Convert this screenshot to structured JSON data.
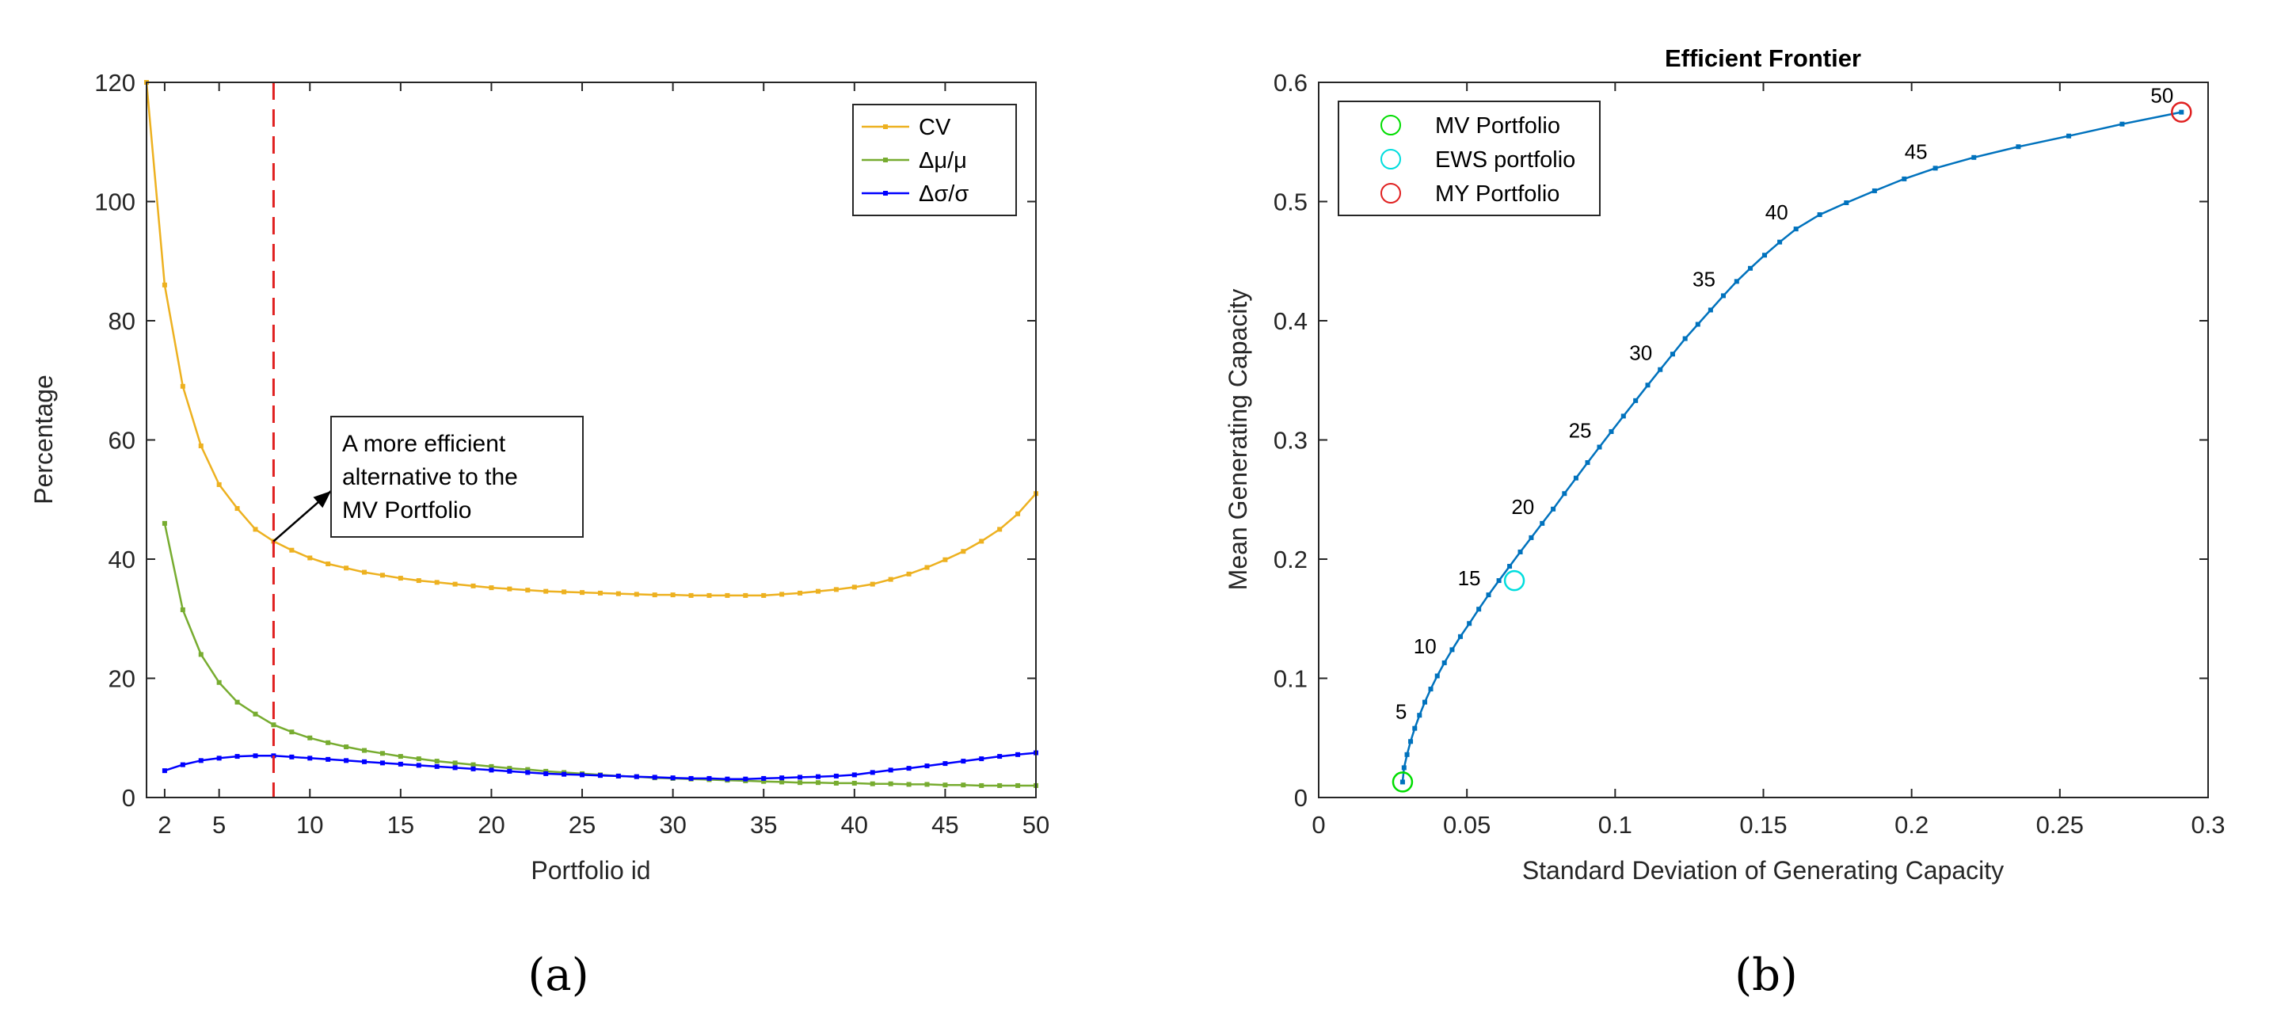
{
  "panel_labels": [
    "(a)",
    "(b)"
  ],
  "chart_data": [
    {
      "type": "line",
      "title": "",
      "xlabel": "Portfolio id",
      "ylabel": "Percentage",
      "xlim": [
        1,
        50
      ],
      "ylim": [
        0,
        120
      ],
      "xticks": [
        2,
        5,
        10,
        15,
        20,
        25,
        30,
        35,
        40,
        45,
        50
      ],
      "yticks": [
        0,
        20,
        40,
        60,
        80,
        100,
        120
      ],
      "legend_position": "top-right",
      "vertical_reference_x": 8,
      "annotation": {
        "lines": [
          "A more efficient",
          "alternative to the",
          "MV Portfolio"
        ],
        "points_to": [
          8,
          43
        ]
      },
      "series": [
        {
          "name": "CV",
          "color": "#EDB120",
          "x": [
            1,
            2,
            3,
            4,
            5,
            6,
            7,
            8,
            9,
            10,
            11,
            12,
            13,
            14,
            15,
            16,
            17,
            18,
            19,
            20,
            21,
            22,
            23,
            24,
            25,
            26,
            27,
            28,
            29,
            30,
            31,
            32,
            33,
            34,
            35,
            36,
            37,
            38,
            39,
            40,
            41,
            42,
            43,
            44,
            45,
            46,
            47,
            48,
            49,
            50
          ],
          "values": [
            120,
            86,
            69,
            59,
            52.5,
            48.5,
            45,
            43,
            41.5,
            40.2,
            39.2,
            38.5,
            37.8,
            37.3,
            36.8,
            36.4,
            36.1,
            35.8,
            35.5,
            35.2,
            35.0,
            34.8,
            34.6,
            34.5,
            34.4,
            34.3,
            34.2,
            34.1,
            34.0,
            34.0,
            33.9,
            33.9,
            33.9,
            33.9,
            33.9,
            34.1,
            34.3,
            34.6,
            34.9,
            35.3,
            35.8,
            36.6,
            37.5,
            38.6,
            39.9,
            41.3,
            43.0,
            45.0,
            47.6,
            51.0
          ]
        },
        {
          "name": "Δμ/μ",
          "color": "#77AC30",
          "x": [
            2,
            3,
            4,
            5,
            6,
            7,
            8,
            9,
            10,
            11,
            12,
            13,
            14,
            15,
            16,
            17,
            18,
            19,
            20,
            21,
            22,
            23,
            24,
            25,
            26,
            27,
            28,
            29,
            30,
            31,
            32,
            33,
            34,
            35,
            36,
            37,
            38,
            39,
            40,
            41,
            42,
            43,
            44,
            45,
            46,
            47,
            48,
            49,
            50
          ],
          "values": [
            46,
            31.5,
            24,
            19.3,
            16,
            14,
            12.2,
            11,
            10,
            9.2,
            8.5,
            7.9,
            7.4,
            6.9,
            6.5,
            6.1,
            5.8,
            5.5,
            5.2,
            4.9,
            4.7,
            4.4,
            4.2,
            4.0,
            3.8,
            3.6,
            3.5,
            3.3,
            3.2,
            3.1,
            3.0,
            2.9,
            2.8,
            2.7,
            2.6,
            2.5,
            2.5,
            2.4,
            2.4,
            2.3,
            2.3,
            2.2,
            2.2,
            2.1,
            2.1,
            2.0,
            2.0,
            2.0,
            2.0
          ]
        },
        {
          "name": "Δσ/σ",
          "color": "#0000FF",
          "x": [
            2,
            3,
            4,
            5,
            6,
            7,
            8,
            9,
            10,
            11,
            12,
            13,
            14,
            15,
            16,
            17,
            18,
            19,
            20,
            21,
            22,
            23,
            24,
            25,
            26,
            27,
            28,
            29,
            30,
            31,
            32,
            33,
            34,
            35,
            36,
            37,
            38,
            39,
            40,
            41,
            42,
            43,
            44,
            45,
            46,
            47,
            48,
            49,
            50
          ],
          "values": [
            4.5,
            5.5,
            6.2,
            6.6,
            6.9,
            7.0,
            7.0,
            6.8,
            6.6,
            6.4,
            6.2,
            6.0,
            5.8,
            5.6,
            5.4,
            5.2,
            5.0,
            4.8,
            4.6,
            4.4,
            4.2,
            4.0,
            3.9,
            3.8,
            3.7,
            3.6,
            3.5,
            3.4,
            3.3,
            3.2,
            3.2,
            3.1,
            3.1,
            3.2,
            3.3,
            3.4,
            3.5,
            3.6,
            3.8,
            4.2,
            4.6,
            4.9,
            5.3,
            5.7,
            6.1,
            6.5,
            6.9,
            7.2,
            7.5
          ]
        }
      ]
    },
    {
      "type": "line",
      "title": "Efficient Frontier",
      "xlabel": "Standard Deviation of Generating Capacity",
      "ylabel": "Mean Generating Capacity",
      "xlim": [
        0,
        0.3
      ],
      "ylim": [
        0,
        0.6
      ],
      "xticks": [
        0,
        0.05,
        0.1,
        0.15,
        0.2,
        0.25,
        0.3
      ],
      "xtick_labels": [
        "0",
        "0.05",
        "0.1",
        "0.15",
        "0.2",
        "0.25",
        "0.3"
      ],
      "yticks": [
        0,
        0.1,
        0.2,
        0.3,
        0.4,
        0.5,
        0.6
      ],
      "ytick_labels": [
        "0",
        "0.1",
        "0.2",
        "0.3",
        "0.4",
        "0.5",
        "0.6"
      ],
      "legend_position": "top-left",
      "series": [
        {
          "name": "Efficient frontier",
          "color": "#0072BD",
          "x": [
            0.0283,
            0.0288,
            0.0298,
            0.031,
            0.0324,
            0.034,
            0.0358,
            0.0378,
            0.04,
            0.0424,
            0.045,
            0.0478,
            0.0508,
            0.054,
            0.0573,
            0.0608,
            0.0644,
            0.068,
            0.0717,
            0.0754,
            0.0791,
            0.0829,
            0.0868,
            0.0907,
            0.0947,
            0.0987,
            0.1028,
            0.1069,
            0.111,
            0.1152,
            0.1194,
            0.1236,
            0.1279,
            0.1322,
            0.1365,
            0.141,
            0.1456,
            0.1504,
            0.1555,
            0.161,
            0.169,
            0.178,
            0.1875,
            0.1975,
            0.208,
            0.221,
            0.236,
            0.253,
            0.271,
            0.291
          ],
          "values": [
            0.013,
            0.025,
            0.036,
            0.047,
            0.058,
            0.069,
            0.08,
            0.091,
            0.102,
            0.113,
            0.124,
            0.135,
            0.146,
            0.158,
            0.17,
            0.182,
            0.194,
            0.206,
            0.218,
            0.23,
            0.242,
            0.255,
            0.268,
            0.281,
            0.294,
            0.307,
            0.32,
            0.333,
            0.346,
            0.359,
            0.372,
            0.385,
            0.397,
            0.409,
            0.421,
            0.433,
            0.444,
            0.455,
            0.466,
            0.477,
            0.489,
            0.499,
            0.509,
            0.519,
            0.528,
            0.537,
            0.546,
            0.555,
            0.565,
            0.575
          ]
        }
      ],
      "point_labels": [
        {
          "text": "5",
          "index": 4
        },
        {
          "text": "10",
          "index": 9
        },
        {
          "text": "15",
          "index": 14
        },
        {
          "text": "20",
          "index": 19
        },
        {
          "text": "25",
          "index": 24
        },
        {
          "text": "30",
          "index": 29
        },
        {
          "text": "35",
          "index": 34
        },
        {
          "text": "40",
          "index": 39
        },
        {
          "text": "45",
          "index": 44
        },
        {
          "text": "50",
          "index": 49
        }
      ],
      "markers": [
        {
          "name": "MV Portfolio",
          "color": "#00DD00",
          "x": 0.0283,
          "y": 0.013
        },
        {
          "name": "EWS portfolio",
          "color": "#00DDDD",
          "x": 0.066,
          "y": 0.182
        },
        {
          "name": "MY Portfolio",
          "color": "#E02020",
          "x": 0.291,
          "y": 0.575
        }
      ]
    }
  ]
}
